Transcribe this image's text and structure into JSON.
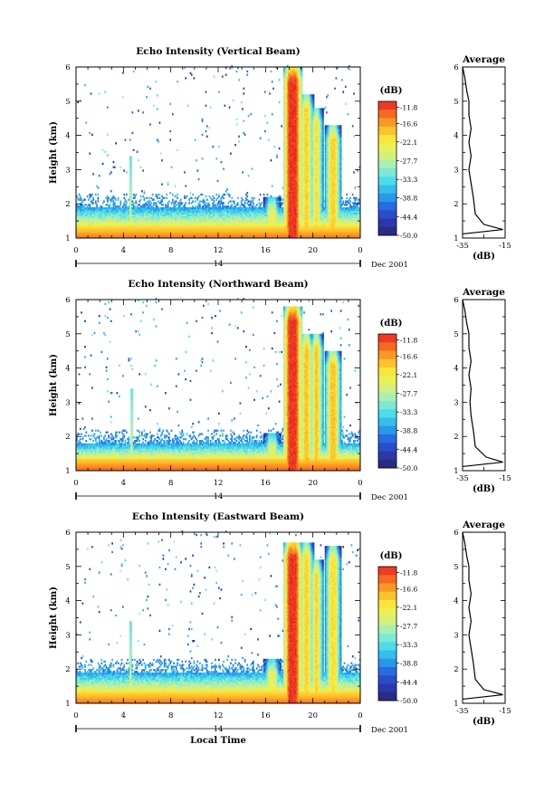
{
  "figure": {
    "xlabel": "Local Time",
    "day_label": "14",
    "date_label": "Dec 2001",
    "ylabel": "Height (km)",
    "colorbar_unit": "(dB)",
    "colorbar_ticks": [
      "-11.8",
      "-16.6",
      "-22.1",
      "-27.7",
      "-33.3",
      "-38.8",
      "-44.4",
      "-50.0"
    ],
    "x_ticks": [
      "0",
      "4",
      "8",
      "12",
      "16",
      "20",
      "0"
    ],
    "y_ticks": [
      "1",
      "2",
      "3",
      "4",
      "5",
      "6"
    ],
    "avg_title": "Average",
    "avg_xlabel": "(dB)",
    "avg_x_ticks": [
      "-35",
      "-15"
    ]
  },
  "chart_data": [
    {
      "type": "heatmap",
      "title": "Echo Intensity (Vertical Beam)",
      "xlabel": "Local Time",
      "ylabel": "Height (km)",
      "xlim": [
        0,
        24
      ],
      "ylim": [
        1,
        6
      ],
      "colorbar": {
        "unit": "dB",
        "range": [
          -50,
          -10
        ]
      },
      "features": {
        "surface_echo_db": -14,
        "boundary_layer_top_km": 1.9,
        "rain_events": [
          {
            "start_h": 16.3,
            "end_h": 16.8,
            "top_km": 2.2,
            "peak_db": -24
          },
          {
            "start_h": 18.0,
            "end_h": 18.6,
            "top_km": 6.0,
            "peak_db": -11
          },
          {
            "start_h": 19.3,
            "end_h": 19.6,
            "top_km": 5.2,
            "peak_db": -20
          },
          {
            "start_h": 20.2,
            "end_h": 20.4,
            "top_km": 4.8,
            "peak_db": -21
          },
          {
            "start_h": 21.5,
            "end_h": 21.9,
            "top_km": 4.3,
            "peak_db": -20
          }
        ],
        "isolated_spike_h": 4.6
      }
    },
    {
      "type": "line",
      "title": "Average",
      "xlabel": "(dB)",
      "ylabel": "Height (km)",
      "xlim": [
        -35,
        -15
      ],
      "ylim": [
        1,
        6
      ],
      "x": [
        -16,
        -25,
        -29,
        -30,
        -31,
        -32,
        -31,
        -32,
        -31,
        -32,
        -32,
        -33,
        -33.5,
        -34,
        -35
      ],
      "y": [
        1.25,
        1.4,
        1.7,
        2.2,
        2.6,
        3.0,
        3.4,
        3.8,
        4.2,
        4.6,
        5.0,
        5.3,
        5.5,
        5.7,
        6.0
      ]
    },
    {
      "type": "heatmap",
      "title": "Echo Intensity (Northward Beam)",
      "xlabel": "Local Time",
      "ylabel": "Height (km)",
      "xlim": [
        0,
        24
      ],
      "ylim": [
        1,
        6
      ],
      "colorbar": {
        "unit": "dB",
        "range": [
          -50,
          -10
        ]
      },
      "features": {
        "surface_echo_db": -13,
        "boundary_layer_top_km": 1.8,
        "rain_events": [
          {
            "start_h": 16.3,
            "end_h": 16.8,
            "top_km": 2.1,
            "peak_db": -25
          },
          {
            "start_h": 18.0,
            "end_h": 18.6,
            "top_km": 5.8,
            "peak_db": -11
          },
          {
            "start_h": 19.3,
            "end_h": 19.6,
            "top_km": 5.0,
            "peak_db": -19
          },
          {
            "start_h": 20.2,
            "end_h": 20.4,
            "top_km": 5.0,
            "peak_db": -19
          },
          {
            "start_h": 21.5,
            "end_h": 21.9,
            "top_km": 4.5,
            "peak_db": -19
          }
        ],
        "isolated_spike_h": 4.7
      }
    },
    {
      "type": "line",
      "title": "Average",
      "xlabel": "(dB)",
      "ylabel": "Height (km)",
      "xlim": [
        -35,
        -15
      ],
      "ylim": [
        1,
        6
      ],
      "x": [
        -16,
        -24,
        -29,
        -30,
        -31,
        -31.5,
        -31,
        -32,
        -31,
        -32,
        -32,
        -33,
        -33.5,
        -34,
        -35
      ],
      "y": [
        1.25,
        1.4,
        1.7,
        2.2,
        2.6,
        3.0,
        3.4,
        3.8,
        4.2,
        4.6,
        5.0,
        5.3,
        5.5,
        5.7,
        6.0
      ]
    },
    {
      "type": "heatmap",
      "title": "Echo Intensity (Eastward Beam)",
      "xlabel": "Local Time",
      "ylabel": "Height (km)",
      "xlim": [
        0,
        24
      ],
      "ylim": [
        1,
        6
      ],
      "colorbar": {
        "unit": "dB",
        "range": [
          -50,
          -10
        ]
      },
      "features": {
        "surface_echo_db": -14,
        "boundary_layer_top_km": 1.9,
        "rain_events": [
          {
            "start_h": 16.3,
            "end_h": 16.8,
            "top_km": 2.3,
            "peak_db": -24
          },
          {
            "start_h": 18.0,
            "end_h": 18.6,
            "top_km": 5.7,
            "peak_db": -11
          },
          {
            "start_h": 19.3,
            "end_h": 19.6,
            "top_km": 5.7,
            "peak_db": -20
          },
          {
            "start_h": 20.2,
            "end_h": 20.4,
            "top_km": 5.2,
            "peak_db": -20
          },
          {
            "start_h": 21.5,
            "end_h": 21.9,
            "top_km": 5.6,
            "peak_db": -21
          }
        ],
        "isolated_spike_h": 4.6
      }
    },
    {
      "type": "line",
      "title": "Average",
      "xlabel": "(dB)",
      "ylabel": "Height (km)",
      "xlim": [
        -35,
        -15
      ],
      "ylim": [
        1,
        6
      ],
      "x": [
        -16,
        -25,
        -29,
        -30,
        -31,
        -32,
        -31,
        -32,
        -31,
        -32,
        -32,
        -33,
        -33.5,
        -34,
        -35
      ],
      "y": [
        1.25,
        1.4,
        1.7,
        2.2,
        2.6,
        3.0,
        3.4,
        3.8,
        4.2,
        4.6,
        5.0,
        5.3,
        5.5,
        5.7,
        6.0
      ]
    }
  ]
}
